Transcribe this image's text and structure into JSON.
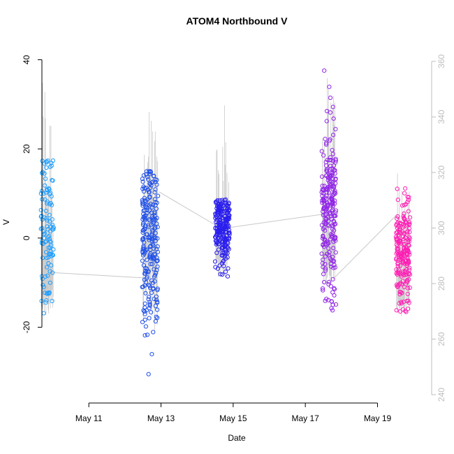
{
  "chart_data": {
    "type": "scatter",
    "title": "ATOM4 Northbound V",
    "xlabel": "Date",
    "ylabel": "V",
    "x_ticks": [
      "May 11",
      "May 13",
      "May 15",
      "May 17",
      "May 19"
    ],
    "x_range_days": [
      9.7,
      20.5
    ],
    "y_ticks": [
      "-20",
      "0",
      "20",
      "40"
    ],
    "ylim": [
      -37,
      44
    ],
    "y2_ticks": [
      "240",
      "260",
      "280",
      "300",
      "320",
      "340",
      "360"
    ],
    "y2lim": [
      237,
      367
    ],
    "grid": false,
    "colors": {
      "gray_line": "#c8c8c8",
      "axis": "#000000",
      "axis_right": "#bdbdbd"
    },
    "series": [
      {
        "x_center": 9.85,
        "x_spread": 0.18,
        "y_min": -28,
        "y_max": 18.5,
        "y_mean": 0,
        "y_sd": 10,
        "line": {
          "base": 288,
          "top": 362,
          "wide_low": 278,
          "wide_high": 322
        },
        "color": "#1E9EFF",
        "points": 110
      },
      {
        "x_center": 12.7,
        "x_spread": 0.22,
        "y_min": -34,
        "y_max": 15,
        "y_mean": 0,
        "y_sd": 9,
        "line": {
          "base": 283,
          "top": 342,
          "wide_low": 290,
          "wide_high": 318
        },
        "color": "#1E4FE8",
        "points": 230
      },
      {
        "x_center": 14.7,
        "x_spread": 0.2,
        "y_min": -12,
        "y_max": 9,
        "y_mean": 2,
        "y_sd": 4,
        "line": {
          "base": 302,
          "top": 345,
          "wide_low": 292,
          "wide_high": 322
        },
        "color": "#2A1EEE",
        "points": 230
      },
      {
        "x_center": 17.65,
        "x_spread": 0.2,
        "y_min": -17,
        "y_max": 41,
        "y_mean": 6,
        "y_sd": 10,
        "line": {
          "base": 299,
          "top": 357,
          "wide_low": 290,
          "wide_high": 328
        },
        "color": "#9124E8",
        "points": 230
      },
      {
        "x_center": 19.7,
        "x_spread": 0.2,
        "y_min": -17,
        "y_max": 26,
        "y_mean": -3,
        "y_sd": 6,
        "line": {
          "base": 295,
          "top": 325,
          "wide_low": 268,
          "wide_high": 318
        },
        "color": "#FF1EB4",
        "points": 200
      }
    ],
    "connectors": [
      {
        "from": [
          9.95,
          284
        ],
        "to": [
          12.55,
          282
        ]
      },
      {
        "from": [
          12.95,
          313
        ],
        "to": [
          14.65,
          300
        ]
      },
      {
        "from": [
          14.8,
          300
        ],
        "to": [
          17.5,
          305
        ]
      },
      {
        "from": [
          17.8,
          282
        ],
        "to": [
          19.55,
          305
        ]
      }
    ]
  }
}
